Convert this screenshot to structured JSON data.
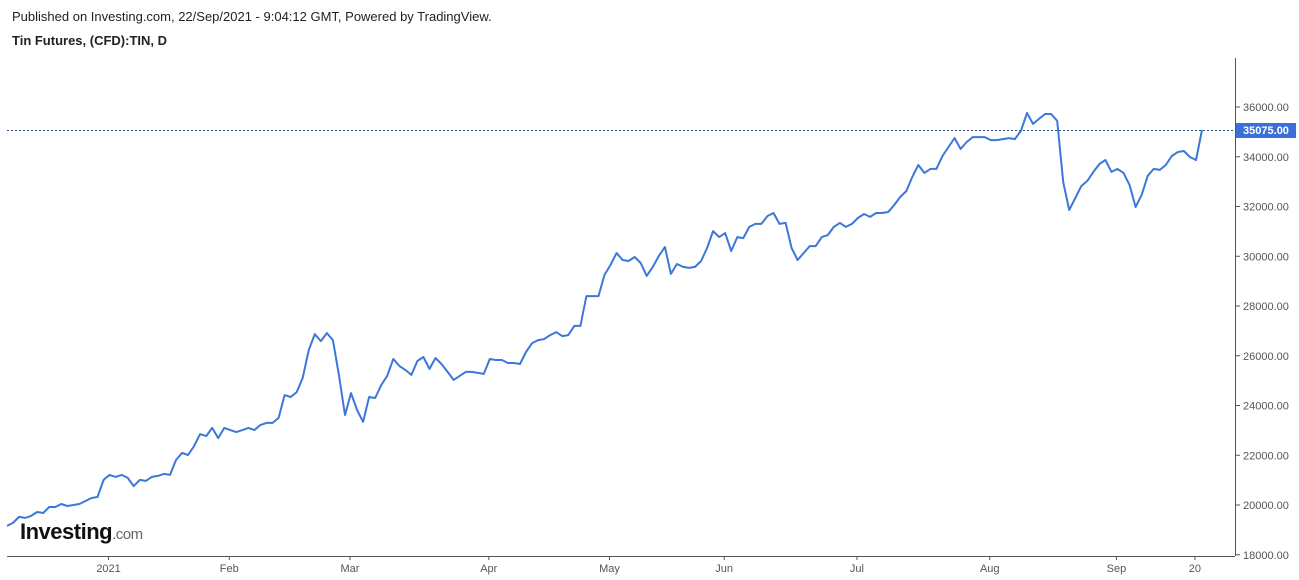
{
  "header": {
    "published": "Published on Investing.com, 22/Sep/2021 - 9:04:12 GMT, Powered by TradingView.",
    "title": "Tin Futures, (CFD):TIN, D"
  },
  "logo": {
    "brand": "Investing",
    "suffix": ".com"
  },
  "colors": {
    "line": "#3c78d8",
    "price_label_bg": "#3c6fd8",
    "axis": "#555555",
    "text": "#555555"
  },
  "chart_data": {
    "type": "line",
    "title": "Tin Futures, (CFD):TIN, D",
    "xlabel": "",
    "ylabel": "",
    "ylim": [
      18000,
      38000
    ],
    "grid": false,
    "legend": "none",
    "last_price_label": "35075.00",
    "y_ticks": [
      "18000.00",
      "20000.00",
      "22000.00",
      "24000.00",
      "26000.00",
      "28000.00",
      "30000.00",
      "32000.00",
      "34000.00",
      "36000.00"
    ],
    "x_ticks": [
      {
        "label": "2021",
        "date": "2021-01-04"
      },
      {
        "label": "Feb",
        "date": "2021-02-01"
      },
      {
        "label": "Mar",
        "date": "2021-03-01"
      },
      {
        "label": "Apr",
        "date": "2021-04-01"
      },
      {
        "label": "May",
        "date": "2021-05-04"
      },
      {
        "label": "Jun",
        "date": "2021-06-01"
      },
      {
        "label": "Jul",
        "date": "2021-07-01"
      },
      {
        "label": "Aug",
        "date": "2021-08-02"
      },
      {
        "label": "Sep",
        "date": "2021-09-01"
      },
      {
        "label": "20",
        "date": "2021-09-20"
      }
    ],
    "dates": [
      "2020-12-09",
      "2020-12-10",
      "2020-12-11",
      "2020-12-14",
      "2020-12-15",
      "2020-12-16",
      "2020-12-17",
      "2020-12-18",
      "2020-12-21",
      "2020-12-22",
      "2020-12-23",
      "2020-12-24",
      "2020-12-28",
      "2020-12-29",
      "2020-12-30",
      "2020-12-31",
      "2021-01-04",
      "2021-01-05",
      "2021-01-06",
      "2021-01-07",
      "2021-01-08",
      "2021-01-11",
      "2021-01-12",
      "2021-01-13",
      "2021-01-14",
      "2021-01-15",
      "2021-01-18",
      "2021-01-19",
      "2021-01-20",
      "2021-01-21",
      "2021-01-22",
      "2021-01-25",
      "2021-01-26",
      "2021-01-27",
      "2021-01-28",
      "2021-01-29",
      "2021-02-01",
      "2021-02-02",
      "2021-02-03",
      "2021-02-04",
      "2021-02-05",
      "2021-02-08",
      "2021-02-09",
      "2021-02-10",
      "2021-02-11",
      "2021-02-12",
      "2021-02-15",
      "2021-02-16",
      "2021-02-17",
      "2021-02-18",
      "2021-02-19",
      "2021-02-22",
      "2021-02-23",
      "2021-02-24",
      "2021-02-25",
      "2021-02-26",
      "2021-03-01",
      "2021-03-02",
      "2021-03-03",
      "2021-03-04",
      "2021-03-05",
      "2021-03-08",
      "2021-03-09",
      "2021-03-10",
      "2021-03-11",
      "2021-03-12",
      "2021-03-15",
      "2021-03-16",
      "2021-03-17",
      "2021-03-18",
      "2021-03-19",
      "2021-03-22",
      "2021-03-23",
      "2021-03-24",
      "2021-03-25",
      "2021-03-26",
      "2021-03-29",
      "2021-03-30",
      "2021-03-31",
      "2021-04-01",
      "2021-04-06",
      "2021-04-07",
      "2021-04-08",
      "2021-04-09",
      "2021-04-12",
      "2021-04-13",
      "2021-04-14",
      "2021-04-15",
      "2021-04-16",
      "2021-04-19",
      "2021-04-20",
      "2021-04-21",
      "2021-04-22",
      "2021-04-23",
      "2021-04-26",
      "2021-04-27",
      "2021-04-28",
      "2021-04-29",
      "2021-04-30",
      "2021-05-04",
      "2021-05-05",
      "2021-05-06",
      "2021-05-07",
      "2021-05-10",
      "2021-05-11",
      "2021-05-12",
      "2021-05-13",
      "2021-05-14",
      "2021-05-17",
      "2021-05-18",
      "2021-05-19",
      "2021-05-20",
      "2021-05-21",
      "2021-05-24",
      "2021-05-25",
      "2021-05-26",
      "2021-05-27",
      "2021-05-28",
      "2021-06-01",
      "2021-06-02",
      "2021-06-03",
      "2021-06-04",
      "2021-06-07",
      "2021-06-08",
      "2021-06-09",
      "2021-06-10",
      "2021-06-11",
      "2021-06-14",
      "2021-06-15",
      "2021-06-16",
      "2021-06-17",
      "2021-06-18",
      "2021-06-21",
      "2021-06-22",
      "2021-06-23",
      "2021-06-24",
      "2021-06-25",
      "2021-06-28",
      "2021-06-29",
      "2021-06-30",
      "2021-07-01",
      "2021-07-02",
      "2021-07-05",
      "2021-07-06",
      "2021-07-07",
      "2021-07-08",
      "2021-07-09",
      "2021-07-12",
      "2021-07-13",
      "2021-07-14",
      "2021-07-15",
      "2021-07-16",
      "2021-07-19",
      "2021-07-20",
      "2021-07-21",
      "2021-07-22",
      "2021-07-23",
      "2021-07-26",
      "2021-07-27",
      "2021-07-28",
      "2021-07-29",
      "2021-07-30",
      "2021-08-02",
      "2021-08-03",
      "2021-08-04",
      "2021-08-05",
      "2021-08-06",
      "2021-08-09",
      "2021-08-10",
      "2021-08-11",
      "2021-08-12",
      "2021-08-13",
      "2021-08-16",
      "2021-08-17",
      "2021-08-18",
      "2021-08-19",
      "2021-08-20",
      "2021-08-23",
      "2021-08-24",
      "2021-08-25",
      "2021-08-26",
      "2021-08-27",
      "2021-08-31",
      "2021-09-01",
      "2021-09-02",
      "2021-09-03",
      "2021-09-06",
      "2021-09-07",
      "2021-09-08",
      "2021-09-09",
      "2021-09-10",
      "2021-09-13",
      "2021-09-14",
      "2021-09-15",
      "2021-09-16",
      "2021-09-17",
      "2021-09-20",
      "2021-09-21",
      "2021-09-22"
    ],
    "values": [
      19160,
      19280,
      19520,
      19480,
      19560,
      19720,
      19680,
      19920,
      19920,
      20040,
      19960,
      20000,
      20040,
      20160,
      20280,
      20320,
      21010,
      21210,
      21130,
      21210,
      21090,
      20760,
      21010,
      20970,
      21130,
      21170,
      21250,
      21210,
      21810,
      22090,
      22010,
      22370,
      22850,
      22770,
      23100,
      22690,
      23100,
      23010,
      22930,
      23010,
      23100,
      23010,
      23220,
      23300,
      23300,
      23500,
      24420,
      24340,
      24540,
      25110,
      26230,
      26870,
      26590,
      26910,
      26630,
      25230,
      23620,
      24500,
      23820,
      23340,
      24340,
      24300,
      24820,
      25190,
      25870,
      25590,
      25430,
      25230,
      25790,
      25950,
      25470,
      25910,
      25670,
      25350,
      25030,
      25190,
      25350,
      25350,
      25310,
      25270,
      25870,
      25830,
      25830,
      25710,
      25710,
      25670,
      26150,
      26510,
      26630,
      26670,
      26830,
      26950,
      26790,
      26830,
      27200,
      27200,
      28400,
      28400,
      28400,
      29250,
      29650,
      30130,
      29850,
      29810,
      29970,
      29730,
      29210,
      29570,
      30010,
      30370,
      29290,
      29690,
      29570,
      29530,
      29570,
      29810,
      30330,
      31010,
      30770,
      30930,
      30210,
      30770,
      30730,
      31180,
      31300,
      31300,
      31620,
      31740,
      31300,
      31340,
      30330,
      29850,
      30130,
      30410,
      30410,
      30770,
      30850,
      31180,
      31340,
      31180,
      31300,
      31540,
      31700,
      31580,
      31740,
      31740,
      31780,
      32060,
      32380,
      32620,
      33190,
      33670,
      33350,
      33510,
      33510,
      34030,
      34390,
      34750,
      34310,
      34590,
      34790,
      34790,
      34790,
      34670,
      34670,
      34710,
      34750,
      34710,
      35040,
      35760,
      35320,
      35520,
      35720,
      35720,
      35440,
      32990,
      31860,
      32340,
      32820,
      33030,
      33390,
      33710,
      33870,
      33390,
      33510,
      33350,
      32860,
      31980,
      32460,
      33230,
      33510,
      33470,
      33670,
      34030,
      34190,
      34230,
      33990,
      33870,
      35075
    ]
  }
}
